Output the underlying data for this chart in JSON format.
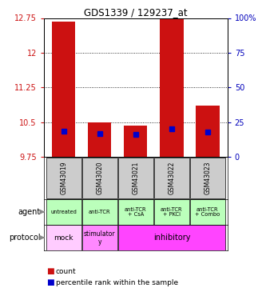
{
  "title": "GDS1339 / 129237_at",
  "samples": [
    "GSM43019",
    "GSM43020",
    "GSM43021",
    "GSM43022",
    "GSM43023"
  ],
  "bar_tops": [
    12.68,
    10.5,
    10.42,
    12.72,
    10.85
  ],
  "bar_bottoms": [
    9.75,
    9.75,
    9.75,
    9.75,
    9.75
  ],
  "percentile_values": [
    10.3,
    10.26,
    10.23,
    10.35,
    10.28
  ],
  "ylim_left": [
    9.75,
    12.75
  ],
  "ylim_right": [
    0,
    100
  ],
  "yticks_left": [
    9.75,
    10.5,
    11.25,
    12.0,
    12.75
  ],
  "yticks_right": [
    0,
    25,
    50,
    75,
    100
  ],
  "ytick_labels_left": [
    "9.75",
    "10.5",
    "11.25",
    "12",
    "12.75"
  ],
  "ytick_labels_right": [
    "0",
    "25",
    "50",
    "75",
    "100%"
  ],
  "hlines": [
    12.0,
    11.25,
    10.5
  ],
  "bar_color": "#cc1111",
  "blue_color": "#0000cc",
  "bar_width": 0.65,
  "agent_labels": [
    "untreated",
    "anti-TCR",
    "anti-TCR\n+ CsA",
    "anti-TCR\n+ PKCi",
    "anti-TCR\n+ Combo"
  ],
  "agent_bg": "#bbffbb",
  "mock_color": "#ffccff",
  "stimulatory_color": "#ff88ff",
  "inhibitory_color": "#ff44ff",
  "sample_bg": "#cccccc",
  "legend_count_color": "#cc1111",
  "legend_pct_color": "#0000cc",
  "figsize": [
    3.33,
    3.75
  ],
  "dpi": 100
}
